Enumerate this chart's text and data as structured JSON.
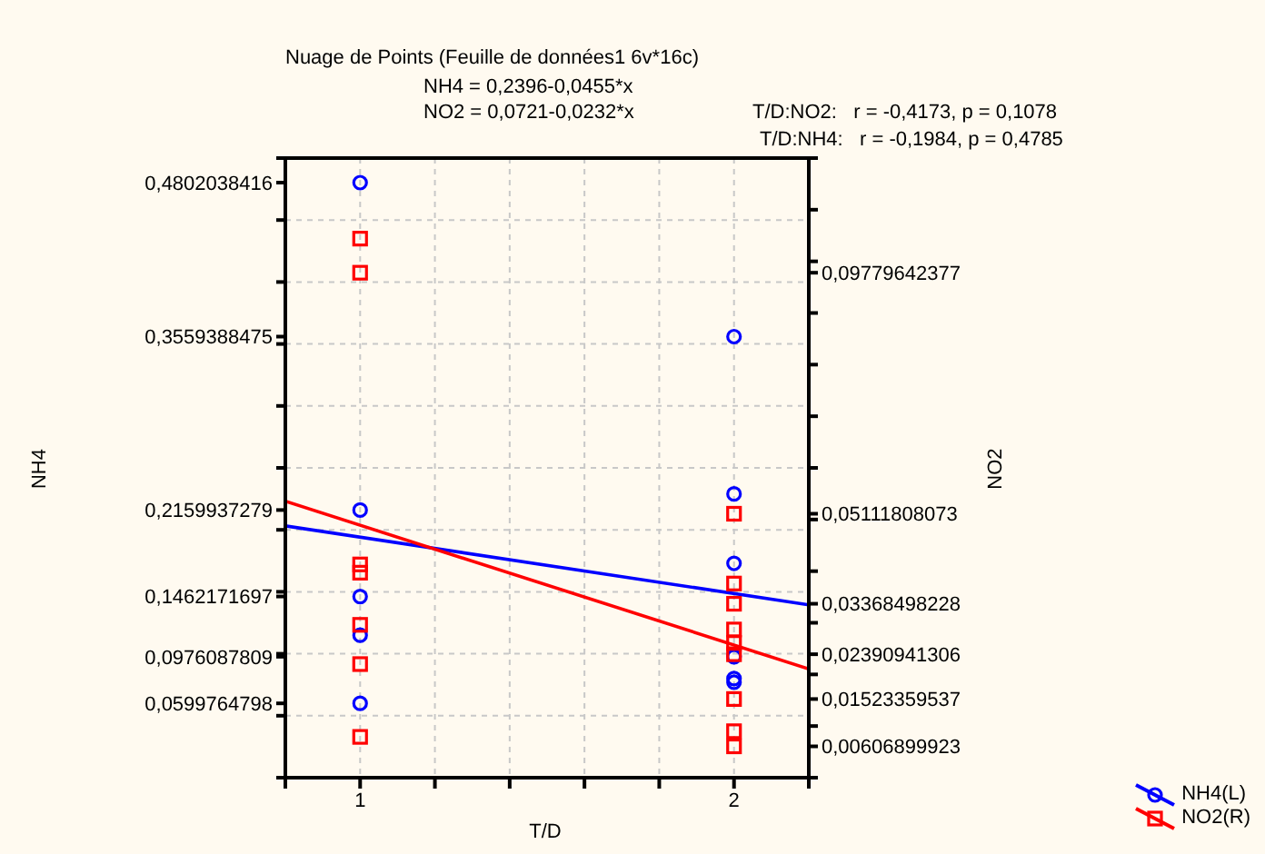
{
  "chart_data": {
    "type": "scatter",
    "title": "Nuage de Points (Feuille de données1 6v*16c)",
    "annotations": [
      "NH4 = 0,2396-0,0455*x",
      "NO2 = 0,0721-0,0232*x",
      "T/D:NO2:   r = -0,4173, p = 0,1078",
      "T/D:NH4:   r = -0,1984, p = 0,4785"
    ],
    "xlabel": "T/D",
    "ylabel": "NH4",
    "y2label": "NO2",
    "xlim": [
      0.8,
      2.2
    ],
    "xticks": [
      {
        "value": 0.8,
        "label": null
      },
      1,
      {
        "value": 1.2,
        "label": null
      },
      {
        "value": 1.4,
        "label": null
      },
      {
        "value": 1.6,
        "label": null
      },
      {
        "value": 1.8,
        "label": null
      },
      2,
      {
        "value": 2.2,
        "label": null
      }
    ],
    "ylim": [
      0,
      0.5
    ],
    "yticks": [
      {
        "value": 0,
        "label": null
      },
      {
        "value": 0.05,
        "label": null
      },
      {
        "value": 0.1,
        "label": null
      },
      {
        "value": 0.15,
        "label": null
      },
      {
        "value": 0.2,
        "label": null
      },
      {
        "value": 0.25,
        "label": null
      },
      {
        "value": 0.3,
        "label": null
      },
      {
        "value": 0.35,
        "label": null
      },
      {
        "value": 0.4,
        "label": null
      },
      {
        "value": 0.45,
        "label": null
      },
      {
        "value": 0.5,
        "label": null
      },
      {
        "value": 0.0599764798,
        "label": "0,0599764798"
      },
      {
        "value": 0.0976087809,
        "label": "0,0976087809"
      },
      {
        "value": 0.1462171697,
        "label": "0,1462171697"
      },
      {
        "value": 0.2159937279,
        "label": "0,2159937279"
      },
      {
        "value": 0.3559388475,
        "label": "0,3559388475"
      },
      {
        "value": 0.4802038416,
        "label": "0,4802038416"
      }
    ],
    "y2lim": [
      0,
      0.12
    ],
    "y2ticks": [
      {
        "value": 0,
        "label": null
      },
      {
        "value": 0.01,
        "label": null
      },
      {
        "value": 0.02,
        "label": null
      },
      {
        "value": 0.03,
        "label": null
      },
      {
        "value": 0.04,
        "label": null
      },
      {
        "value": 0.05,
        "label": null
      },
      {
        "value": 0.06,
        "label": null
      },
      {
        "value": 0.07,
        "label": null
      },
      {
        "value": 0.08,
        "label": null
      },
      {
        "value": 0.09,
        "label": null
      },
      {
        "value": 0.1,
        "label": null
      },
      {
        "value": 0.11,
        "label": null
      },
      {
        "value": 0.12,
        "label": null
      },
      {
        "value": 0.00606899923,
        "label": "0,00606899923"
      },
      {
        "value": 0.01523359537,
        "label": "0,01523359537"
      },
      {
        "value": 0.02390941306,
        "label": "0,02390941306"
      },
      {
        "value": 0.03368498228,
        "label": "0,03368498228"
      },
      {
        "value": 0.05111808073,
        "label": "0,05111808073"
      },
      {
        "value": 0.09779642377,
        "label": "0,09779642377"
      }
    ],
    "grid": true,
    "legend": "bottom right",
    "series": [
      {
        "name": "NH4(L)",
        "color": "#0000ff",
        "marker": "circle",
        "x": [
          1,
          1,
          1,
          1,
          1,
          2,
          2,
          2,
          2,
          2,
          2
        ],
        "values": [
          0.4802038416,
          0.2159937279,
          0.1462171697,
          0.115,
          0.0599764798,
          0.3559388475,
          0.229,
          0.173,
          0.0976087809,
          0.08,
          0.077
        ]
      },
      {
        "name": "NO2(R)",
        "color": "#ff0000",
        "marker": "square",
        "axis": "y2",
        "x": [
          1,
          1,
          1,
          1,
          1,
          1,
          1,
          2,
          2,
          2,
          2,
          2,
          2,
          2,
          2,
          2
        ],
        "values": [
          0.1044,
          0.09779642377,
          0.0413,
          0.0397,
          0.0296,
          0.022,
          0.0079,
          0.05111808073,
          0.0376,
          0.03368498228,
          0.0287,
          0.0261,
          0.02390941306,
          0.01523359537,
          0.009,
          0.00606899923
        ]
      },
      {
        "type": "line",
        "color": "#0000ff",
        "marker": "none",
        "x": [
          0.8,
          2.2
        ],
        "values": [
          0.2032,
          0.1395
        ]
      },
      {
        "type": "line",
        "color": "#ff0000",
        "marker": "none",
        "axis": "y2",
        "x": [
          0.8,
          2.2
        ],
        "values": [
          0.05354,
          0.02106
        ]
      }
    ]
  }
}
